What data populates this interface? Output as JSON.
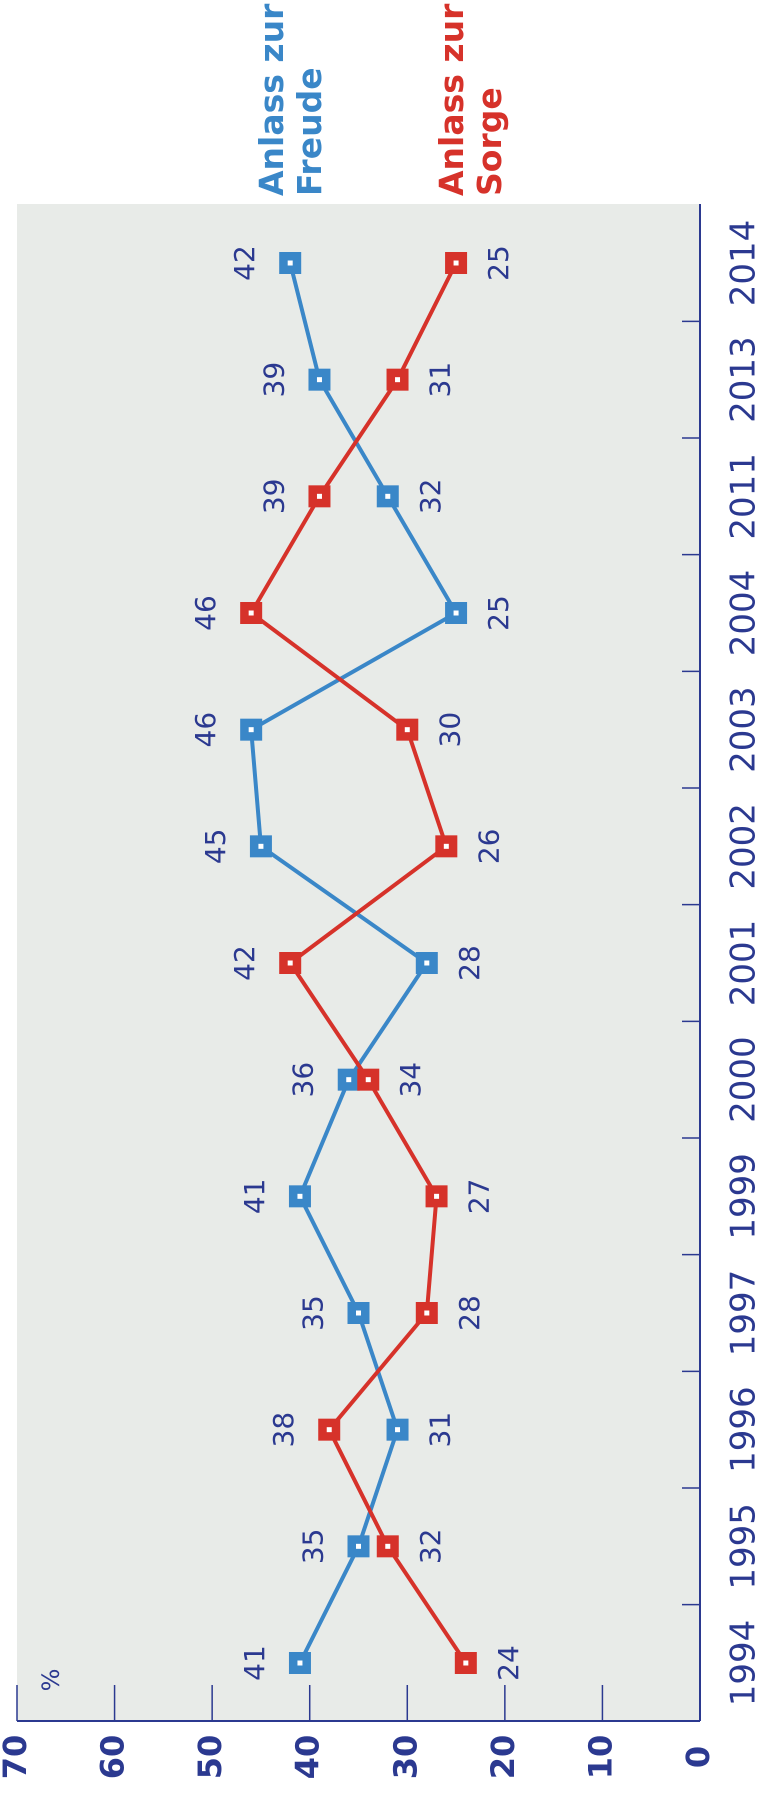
{
  "chart_data": {
    "type": "line",
    "y_label": "%",
    "categories": [
      "1994",
      "1995",
      "1996",
      "1997",
      "1999",
      "2000",
      "2001",
      "2002",
      "2003",
      "2004",
      "2011",
      "2013",
      "2014"
    ],
    "series": [
      {
        "name": "Anlass zur Freude",
        "color": "#3a87c8",
        "values": [
          41,
          35,
          31,
          35,
          41,
          36,
          28,
          45,
          46,
          25,
          32,
          39,
          42
        ]
      },
      {
        "name": "Anlass zur Sorge",
        "color": "#d6322a",
        "values": [
          24,
          32,
          38,
          28,
          27,
          34,
          42,
          26,
          30,
          46,
          39,
          31,
          25
        ]
      }
    ],
    "ylim": [
      0,
      70
    ],
    "yticks": [
      0,
      10,
      20,
      30,
      40,
      50,
      60,
      70
    ],
    "background": "#e8ebe8",
    "axis_color": "#2b3990"
  }
}
